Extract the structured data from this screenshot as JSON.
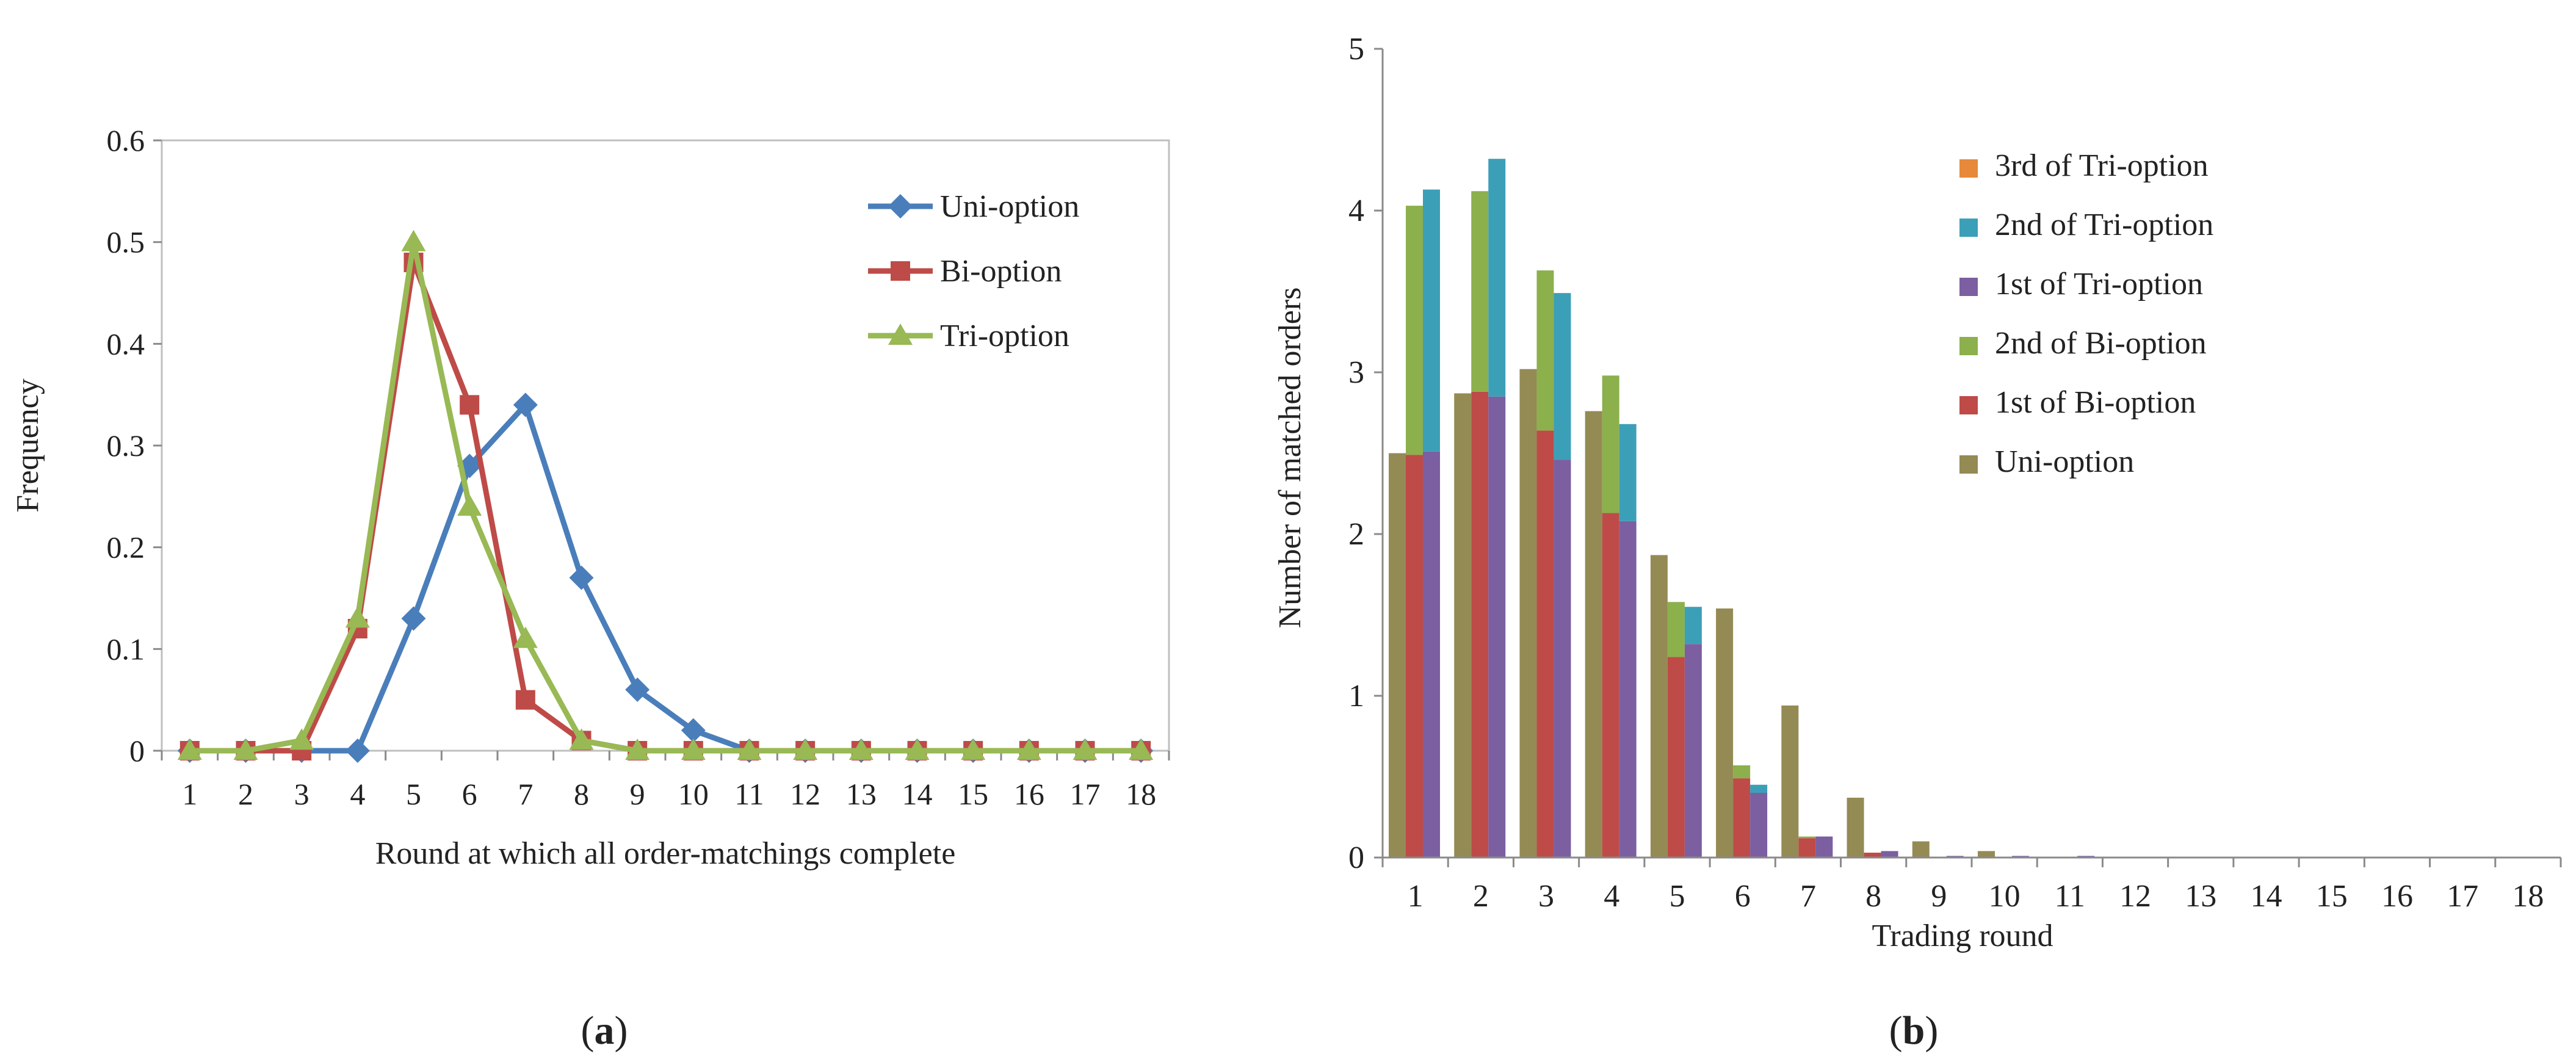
{
  "chart_data": [
    {
      "type": "line",
      "panel_label": "a",
      "xlabel": "Round at which all order-matchings complete",
      "ylabel": "Frequency",
      "categories": [
        "1",
        "2",
        "3",
        "4",
        "5",
        "6",
        "7",
        "8",
        "9",
        "10",
        "11",
        "12",
        "13",
        "14",
        "15",
        "16",
        "17",
        "18"
      ],
      "ylim": [
        0,
        0.6
      ],
      "yticks": [
        "0",
        "0.1",
        "0.2",
        "0.3",
        "0.4",
        "0.5",
        "0.6"
      ],
      "grid": false,
      "legend": "top-right",
      "series": [
        {
          "name": "Uni-option",
          "color": "#4a7ebb",
          "marker": "diamond",
          "values": [
            0,
            0,
            0,
            0,
            0.13,
            0.28,
            0.34,
            0.17,
            0.06,
            0.02,
            0,
            0,
            0,
            0,
            0,
            0,
            0,
            0
          ]
        },
        {
          "name": "Bi-option",
          "color": "#be4b48",
          "marker": "square",
          "values": [
            0,
            0,
            0,
            0.12,
            0.48,
            0.34,
            0.05,
            0.01,
            0,
            0,
            0,
            0,
            0,
            0,
            0,
            0,
            0,
            0
          ]
        },
        {
          "name": "Tri-option",
          "color": "#98b954",
          "marker": "triangle",
          "values": [
            0,
            0,
            0.01,
            0.13,
            0.5,
            0.24,
            0.11,
            0.01,
            0,
            0,
            0,
            0,
            0,
            0,
            0,
            0,
            0,
            0
          ]
        }
      ]
    },
    {
      "type": "bar",
      "panel_label": "b",
      "xlabel": "Trading round",
      "ylabel": "Number of matched orders",
      "categories": [
        "1",
        "2",
        "3",
        "4",
        "5",
        "6",
        "7",
        "8",
        "9",
        "10",
        "11",
        "12",
        "13",
        "14",
        "15",
        "16",
        "17",
        "18"
      ],
      "ylim": [
        0,
        5
      ],
      "yticks": [
        "0",
        "1",
        "2",
        "3",
        "4",
        "5"
      ],
      "grid": false,
      "legend": "top-right",
      "legend_order": [
        "3rd of Tri-option",
        "2nd of Tri-option",
        "1st of Tri-option",
        "2nd of Bi-option",
        "1st of Bi-option",
        "Uni-option"
      ],
      "groups": [
        {
          "name": "Uni-option",
          "stack": [
            {
              "name": "Uni-option",
              "color": "#948a54",
              "values": [
                2.5,
                2.87,
                3.02,
                2.76,
                1.87,
                1.54,
                0.94,
                0.37,
                0.1,
                0.04,
                0,
                0,
                0,
                0,
                0,
                0,
                0,
                0
              ]
            }
          ]
        },
        {
          "name": "Bi-option",
          "stack": [
            {
              "name": "1st of Bi-option",
              "color": "#be4b48",
              "values": [
                2.49,
                2.88,
                2.64,
                2.13,
                1.24,
                0.49,
                0.12,
                0.03,
                0,
                0,
                0,
                0,
                0,
                0,
                0,
                0,
                0,
                0
              ]
            },
            {
              "name": "2nd of Bi-option",
              "color": "#8cb04c",
              "values": [
                1.54,
                1.24,
                0.99,
                0.85,
                0.34,
                0.08,
                0.01,
                0,
                0,
                0,
                0,
                0,
                0,
                0,
                0,
                0,
                0,
                0
              ]
            }
          ]
        },
        {
          "name": "Tri-option",
          "stack": [
            {
              "name": "1st of Tri-option",
              "color": "#7b5fa1",
              "values": [
                2.51,
                2.85,
                2.46,
                2.08,
                1.32,
                0.4,
                0.13,
                0.04,
                0.01,
                0.01,
                0.01,
                0,
                0,
                0,
                0,
                0,
                0,
                0
              ]
            },
            {
              "name": "2nd of Tri-option",
              "color": "#3c9fb8",
              "values": [
                1.62,
                1.47,
                1.03,
                0.6,
                0.23,
                0.05,
                0,
                0,
                0,
                0,
                0,
                0,
                0,
                0,
                0,
                0,
                0,
                0
              ]
            },
            {
              "name": "3rd of Tri-option",
              "color": "#e6893a",
              "values": [
                0,
                0,
                0,
                0,
                0,
                0,
                0,
                0,
                0,
                0,
                0,
                0,
                0,
                0,
                0,
                0,
                0,
                0
              ]
            }
          ]
        }
      ]
    }
  ]
}
